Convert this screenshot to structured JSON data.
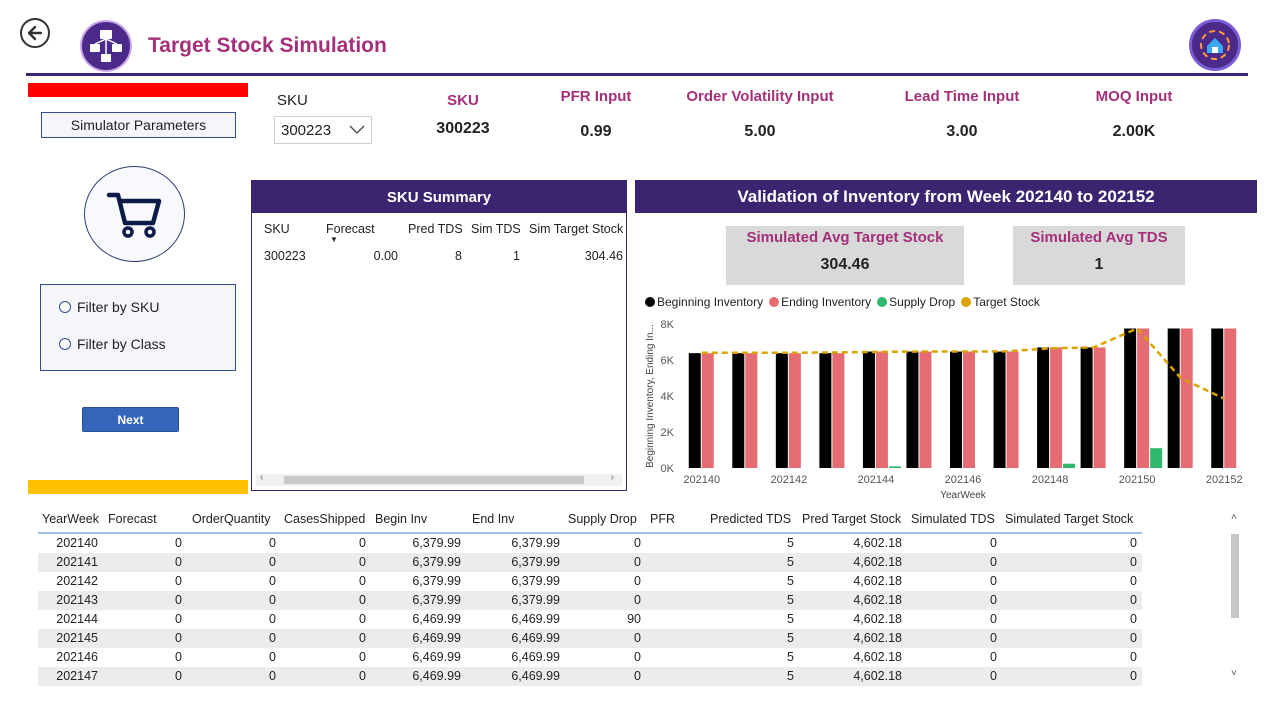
{
  "header": {
    "title": "Target Stock Simulation"
  },
  "left_panel": {
    "sim_params_label": "Simulator Parameters",
    "filters": [
      {
        "label": "Filter by SKU"
      },
      {
        "label": "Filter by Class"
      }
    ],
    "next_label": "Next"
  },
  "slicer": {
    "label": "SKU",
    "selected": "300223"
  },
  "kpis": [
    {
      "label": "SKU",
      "value": "300223"
    },
    {
      "label": "PFR Input",
      "value": "0.99"
    },
    {
      "label": "Order Volatility Input",
      "value": "5.00"
    },
    {
      "label": "Lead Time Input",
      "value": "3.00"
    },
    {
      "label": "MOQ Input",
      "value": "2.00K"
    }
  ],
  "sku_summary": {
    "title": "SKU Summary",
    "columns": [
      "SKU",
      "Forecast",
      "Pred TDS",
      "Sim TDS",
      "Sim Target Stock"
    ],
    "rows": [
      [
        "300223",
        "0.00",
        "8",
        "1",
        "304.46"
      ]
    ]
  },
  "validation": {
    "title": "Validation of Inventory from Week  202140 to 202152",
    "cards": [
      {
        "label": "Simulated Avg Target Stock",
        "value": "304.46"
      },
      {
        "label": "Simulated Avg TDS",
        "value": "1"
      }
    ]
  },
  "chart_data": {
    "type": "bar",
    "x": [
      "202140",
      "202141",
      "202142",
      "202143",
      "202144",
      "202145",
      "202146",
      "202147",
      "202148",
      "202149",
      "202150",
      "202151",
      "202152"
    ],
    "x_tick_labels": [
      "202140",
      "202142",
      "202144",
      "202146",
      "202148",
      "202150",
      "202152"
    ],
    "xlabel": "YearWeek",
    "ylabel": "Beginning Inventory, Ending In...",
    "y_ticks": [
      "0K",
      "2K",
      "4K",
      "6K",
      "8K"
    ],
    "ylim": [
      0,
      8000
    ],
    "legend_position": "top-left",
    "series": [
      {
        "name": "Beginning Inventory",
        "type": "bar",
        "color": "#000000",
        "values": [
          6379.99,
          6379.99,
          6379.99,
          6379.99,
          6469.99,
          6469.99,
          6469.99,
          6469.99,
          6700,
          6700,
          7750,
          7750,
          7750
        ]
      },
      {
        "name": "Ending Inventory",
        "type": "bar",
        "color": "#e66c74",
        "values": [
          6379.99,
          6379.99,
          6379.99,
          6379.99,
          6469.99,
          6469.99,
          6469.99,
          6469.99,
          6700,
          6700,
          7750,
          7750,
          7750
        ]
      },
      {
        "name": "Supply Drop",
        "type": "bar",
        "color": "#2fb86e",
        "values": [
          0,
          0,
          0,
          0,
          90,
          0,
          0,
          0,
          240,
          0,
          1100,
          0,
          0
        ]
      },
      {
        "name": "Target Stock",
        "type": "line",
        "color": "#d9a400",
        "values": [
          6400,
          6400,
          6400,
          6420,
          6450,
          6470,
          6470,
          6480,
          6650,
          6700,
          7750,
          5000,
          3850
        ]
      }
    ]
  },
  "bottom_table": {
    "columns": [
      "YearWeek",
      "Forecast",
      "OrderQuantity",
      "CasesShipped",
      "Begin Inv",
      "End Inv",
      "Supply Drop",
      "PFR",
      "Predicted TDS",
      "Pred Target Stock",
      "Simulated TDS",
      "Simulated Target Stock"
    ],
    "rows": [
      [
        "202140",
        "0",
        "0",
        "0",
        "6,379.99",
        "6,379.99",
        "0",
        "",
        "5",
        "4,602.18",
        "0",
        "0"
      ],
      [
        "202141",
        "0",
        "0",
        "0",
        "6,379.99",
        "6,379.99",
        "0",
        "",
        "5",
        "4,602.18",
        "0",
        "0"
      ],
      [
        "202142",
        "0",
        "0",
        "0",
        "6,379.99",
        "6,379.99",
        "0",
        "",
        "5",
        "4,602.18",
        "0",
        "0"
      ],
      [
        "202143",
        "0",
        "0",
        "0",
        "6,379.99",
        "6,379.99",
        "0",
        "",
        "5",
        "4,602.18",
        "0",
        "0"
      ],
      [
        "202144",
        "0",
        "0",
        "0",
        "6,469.99",
        "6,469.99",
        "90",
        "",
        "5",
        "4,602.18",
        "0",
        "0"
      ],
      [
        "202145",
        "0",
        "0",
        "0",
        "6,469.99",
        "6,469.99",
        "0",
        "",
        "5",
        "4,602.18",
        "0",
        "0"
      ],
      [
        "202146",
        "0",
        "0",
        "0",
        "6,469.99",
        "6,469.99",
        "0",
        "",
        "5",
        "4,602.18",
        "0",
        "0"
      ],
      [
        "202147",
        "0",
        "0",
        "0",
        "6,469.99",
        "6,469.99",
        "0",
        "",
        "5",
        "4,602.18",
        "0",
        "0"
      ]
    ]
  },
  "colors": {
    "title": "#a4307a",
    "header_bg": "#3b2470",
    "accent_red": "#ff0000",
    "accent_yellow": "#ffc000",
    "button_blue": "#3565b8"
  }
}
